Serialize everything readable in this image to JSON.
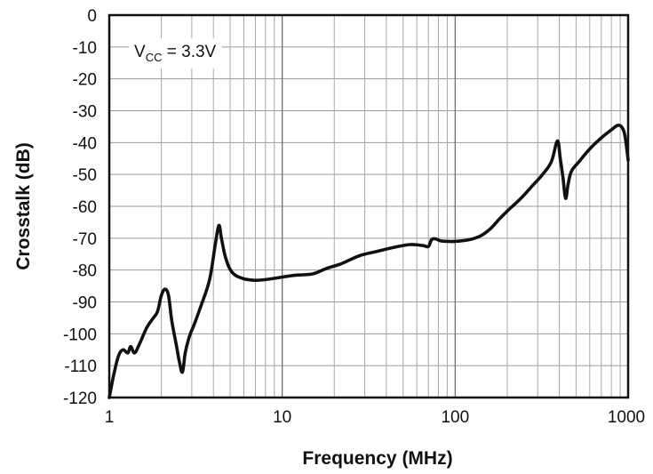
{
  "chart_data": {
    "type": "line",
    "title": "",
    "xlabel": "Frequency (MHz)",
    "ylabel": "Crosstalk (dB)",
    "x_scale": "log",
    "xlim": [
      1,
      1000
    ],
    "ylim": [
      -120,
      0
    ],
    "x_ticks": [
      1,
      10,
      100,
      1000
    ],
    "x_tick_labels": [
      "1",
      "10",
      "100",
      "1000"
    ],
    "y_ticks": [
      0,
      -10,
      -20,
      -30,
      -40,
      -50,
      -60,
      -70,
      -80,
      -90,
      -100,
      -110,
      -120
    ],
    "y_tick_labels": [
      "0",
      "-10",
      "-20",
      "-30",
      "-40",
      "-50",
      "-60",
      "-70",
      "-80",
      "-90",
      "-100",
      "-110",
      "-120"
    ],
    "grid": true,
    "legend": "none",
    "line_color": "#111111",
    "annotation": {
      "main": "V",
      "sub": "CC",
      "rest": " = 3.3V",
      "position": "top-left"
    },
    "series": [
      {
        "x": [
          1.0,
          1.06,
          1.13,
          1.2,
          1.28,
          1.33,
          1.4,
          1.5,
          1.65,
          1.8,
          1.9,
          2.0,
          2.1,
          2.2,
          2.3,
          2.45,
          2.55,
          2.65,
          2.75,
          2.9,
          3.1,
          3.4,
          3.8,
          4.1,
          4.3,
          4.45,
          4.7,
          5.1,
          5.8,
          6.8,
          8.0,
          10.0,
          12.0,
          15.0,
          18.0,
          22.0,
          28.0,
          35.0,
          45.0,
          55.0,
          65.0,
          70.0,
          73.0,
          77.0,
          82.0,
          90.0,
          100.0,
          120.0,
          140.0,
          160.0,
          180.0,
          200.0,
          240.0,
          280.0,
          320.0,
          360.0,
          390.0,
          405.0,
          420.0,
          435.0,
          450.0,
          470.0,
          520.0,
          600.0,
          700.0,
          800.0,
          870.0,
          920.0,
          960.0,
          1000.0
        ],
        "y": [
          -120,
          -113,
          -107,
          -105,
          -106,
          -104,
          -106,
          -103,
          -98,
          -95,
          -93,
          -88,
          -86,
          -88,
          -96,
          -104,
          -109,
          -112,
          -106,
          -101,
          -97,
          -91,
          -83,
          -72,
          -66,
          -70,
          -76,
          -80.5,
          -82.5,
          -83.2,
          -83.0,
          -82.2,
          -81.6,
          -81.2,
          -79.5,
          -78.0,
          -75.5,
          -74.2,
          -72.8,
          -72.0,
          -72.3,
          -72.6,
          -70.5,
          -70.2,
          -70.8,
          -71.0,
          -71.0,
          -70.5,
          -69.3,
          -67.0,
          -64.0,
          -61.5,
          -57.5,
          -53.5,
          -50.0,
          -46.0,
          -39.5,
          -45.0,
          -51.0,
          -57.5,
          -53.0,
          -49.0,
          -46.0,
          -42.0,
          -38.5,
          -36.0,
          -34.6,
          -35.2,
          -38.0,
          -45.5
        ]
      }
    ]
  }
}
